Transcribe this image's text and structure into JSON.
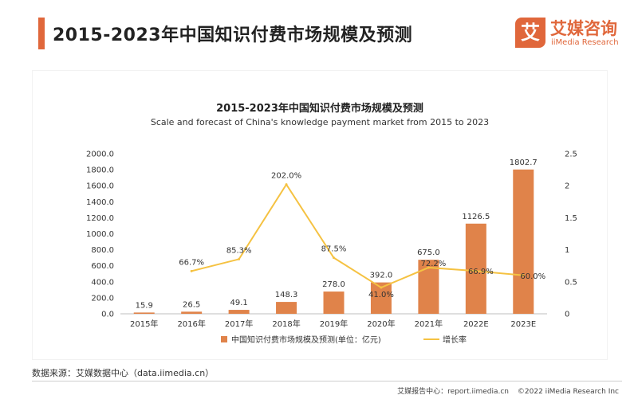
{
  "header": {
    "title": "2015-2023年中国知识付费市场规模及预测"
  },
  "logo": {
    "mark": "艾",
    "name": "艾媒咨询",
    "sub": "iiMedia Research"
  },
  "chart_data": {
    "type": "bar",
    "title": "2015-2023年中国知识付费市场规模及预测",
    "subtitle": "Scale and forecast of China's knowledge payment market from 2015 to 2023",
    "categories": [
      "2015年",
      "2016年",
      "2017年",
      "2018年",
      "2019年",
      "2020年",
      "2021年",
      "2022E",
      "2023E"
    ],
    "series": [
      {
        "name": "中国知识付费市场规模及预测(单位：亿元)",
        "type": "bar",
        "axis": "left",
        "values": [
          15.9,
          26.5,
          49.1,
          148.3,
          278.0,
          392.0,
          675.0,
          1126.5,
          1802.7
        ],
        "labels": [
          "15.9",
          "26.5",
          "49.1",
          "148.3",
          "278.0",
          "392.0",
          "675.0",
          "1126.5",
          "1802.7"
        ],
        "color": "#e0834a"
      },
      {
        "name": "增长率",
        "type": "line",
        "axis": "right",
        "values": [
          null,
          0.667,
          0.853,
          2.02,
          0.875,
          0.41,
          0.722,
          0.669,
          0.6
        ],
        "labels": [
          "",
          "66.7%",
          "85.3%",
          "202.0%",
          "87.5%",
          "41.0%",
          "72.2%",
          "66.9%",
          "60.0%"
        ],
        "color": "#f5c242"
      }
    ],
    "y_left": {
      "range": [
        0,
        2000
      ],
      "ticks": [
        "0.0",
        "200.0",
        "400.0",
        "600.0",
        "800.0",
        "1000.0",
        "1200.0",
        "1400.0",
        "1600.0",
        "1800.0",
        "2000.0"
      ]
    },
    "y_right": {
      "range": [
        0,
        2.5
      ],
      "ticks": [
        "0",
        "0.5",
        "1",
        "1.5",
        "2",
        "2.5"
      ]
    },
    "legend": "bottom",
    "grid": false
  },
  "source": {
    "text": "数据来源：艾媒数据中心（data.iimedia.cn）"
  },
  "footer": {
    "report": "艾媒报告中心：report.iimedia.cn",
    "copyright": "©2022  iiMedia Research  Inc"
  }
}
